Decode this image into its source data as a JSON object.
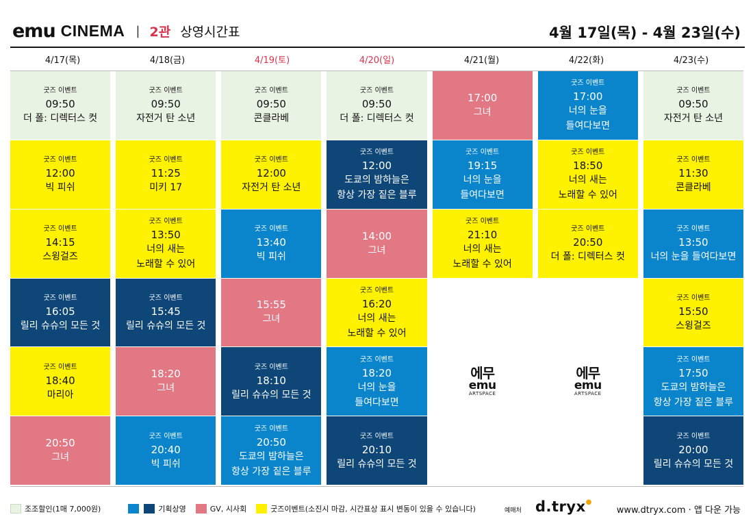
{
  "header": {
    "logo_emu": "emu",
    "logo_cinema": "CINEMA",
    "separator": "|",
    "hall": "2관",
    "title": "상영시간표",
    "date_range": "4월 17일(목) - 4월 23일(수)"
  },
  "days": [
    {
      "label": "4/17(목)",
      "red": false
    },
    {
      "label": "4/18(금)",
      "red": false
    },
    {
      "label": "4/19(토)",
      "red": true
    },
    {
      "label": "4/20(일)",
      "red": true
    },
    {
      "label": "4/21(월)",
      "red": false
    },
    {
      "label": "4/22(화)",
      "red": false
    },
    {
      "label": "4/23(수)",
      "red": false
    }
  ],
  "tag_text": "굿즈 이벤트",
  "columns": [
    [
      {
        "type": "goods",
        "tag": true,
        "time": "09:50",
        "film": "더 폴: 디렉터스 컷"
      },
      {
        "type": "yellow",
        "tag": true,
        "time": "12:00",
        "film": "빅 피쉬"
      },
      {
        "type": "yellow",
        "tag": true,
        "time": "14:15",
        "film": "스윙걸즈"
      },
      {
        "type": "navy",
        "tag": true,
        "time": "16:05",
        "film": "릴리 슈슈의 모든 것"
      },
      {
        "type": "yellow",
        "tag": true,
        "time": "18:40",
        "film": "마리아"
      },
      {
        "type": "pink",
        "tag": false,
        "time": "20:50",
        "film": "그녀"
      }
    ],
    [
      {
        "type": "goods",
        "tag": true,
        "time": "09:50",
        "film": "자전거 탄 소년"
      },
      {
        "type": "yellow",
        "tag": true,
        "time": "11:25",
        "film": "미키 17"
      },
      {
        "type": "yellow",
        "tag": true,
        "time": "13:50",
        "film": "너의 새는\n노래할 수 있어"
      },
      {
        "type": "navy",
        "tag": true,
        "time": "15:45",
        "film": "릴리 슈슈의 모든 것"
      },
      {
        "type": "pink",
        "tag": false,
        "time": "18:20",
        "film": "그녀"
      },
      {
        "type": "blue",
        "tag": true,
        "time": "20:40",
        "film": "빅 피쉬"
      }
    ],
    [
      {
        "type": "goods",
        "tag": true,
        "time": "09:50",
        "film": "콘클라베"
      },
      {
        "type": "yellow",
        "tag": true,
        "time": "12:00",
        "film": "자전거 탄 소년"
      },
      {
        "type": "blue",
        "tag": true,
        "time": "13:40",
        "film": "빅 피쉬"
      },
      {
        "type": "pink",
        "tag": false,
        "time": "15:55",
        "film": "그녀"
      },
      {
        "type": "navy",
        "tag": true,
        "time": "18:10",
        "film": "릴리 슈슈의 모든 것"
      },
      {
        "type": "blue",
        "tag": true,
        "time": "20:50",
        "film": "도쿄의 밤하늘은\n항상 가장 짙은 블루"
      }
    ],
    [
      {
        "type": "goods",
        "tag": true,
        "time": "09:50",
        "film": "더 폴: 디렉터스 컷"
      },
      {
        "type": "navy",
        "tag": true,
        "time": "12:00",
        "film": "도쿄의 밤하늘은\n항상 가장 짙은 블루"
      },
      {
        "type": "pink",
        "tag": false,
        "time": "14:00",
        "film": "그녀"
      },
      {
        "type": "yellow",
        "tag": true,
        "time": "16:20",
        "film": "너의 새는\n노래할 수 있어"
      },
      {
        "type": "blue",
        "tag": true,
        "time": "18:20",
        "film": "너의 눈을\n들여다보면"
      },
      {
        "type": "navy",
        "tag": true,
        "time": "20:10",
        "film": "릴리 슈슈의 모든 것"
      }
    ],
    [
      {
        "type": "pink",
        "tag": false,
        "time": "17:00",
        "film": "그녀"
      },
      {
        "type": "blue",
        "tag": true,
        "time": "19:15",
        "film": "너의 눈을\n들여다보면"
      },
      {
        "type": "yellow",
        "tag": true,
        "time": "21:10",
        "film": "너의 새는\n노래할 수 있어"
      },
      {
        "type": "empty"
      },
      {
        "type": "artspace"
      },
      {
        "type": "empty"
      }
    ],
    [
      {
        "type": "blue",
        "tag": true,
        "time": "17:00",
        "film": "너의 눈을\n들여다보면"
      },
      {
        "type": "yellow",
        "tag": true,
        "time": "18:50",
        "film": "너의 새는\n노래할 수 있어"
      },
      {
        "type": "yellow",
        "tag": true,
        "time": "20:50",
        "film": "더 폴: 디렉터스 컷"
      },
      {
        "type": "empty"
      },
      {
        "type": "artspace"
      },
      {
        "type": "empty"
      }
    ],
    [
      {
        "type": "goods",
        "tag": true,
        "time": "09:50",
        "film": "자전거 탄 소년"
      },
      {
        "type": "yellow",
        "tag": true,
        "time": "11:30",
        "film": "콘클라베"
      },
      {
        "type": "blue",
        "tag": true,
        "time": "13:50",
        "film": "너의 눈을 들여다보면"
      },
      {
        "type": "yellow",
        "tag": true,
        "time": "15:50",
        "film": "스윙걸즈"
      },
      {
        "type": "blue",
        "tag": true,
        "time": "17:50",
        "film": "도쿄의 밤하늘은\n항상 가장 짙은 블루"
      },
      {
        "type": "navy",
        "tag": true,
        "time": "20:00",
        "film": "릴리 슈슈의 모든 것"
      }
    ]
  ],
  "artspace": {
    "ko": "에무",
    "en": "emu",
    "sub": "ARTSPACE"
  },
  "legend": {
    "discount": "조조할인(1매 7,000원)",
    "special": "기획상영",
    "gv": "GV, 시사회",
    "goods": "굿즈이벤트(소진시 마감, 시간표상 표시 변동이 있을 수 있습니다)"
  },
  "booking": {
    "label": "예매처",
    "brand": "d.tryx",
    "site": "www.dtryx.com · 앱 다운 가능"
  },
  "colors": {
    "goods_bg": "#e9f3e3",
    "yellow": "#fff200",
    "blue": "#0a85cc",
    "navy": "#0f4678",
    "pink": "#e27883",
    "hall_red": "#d8344d"
  }
}
